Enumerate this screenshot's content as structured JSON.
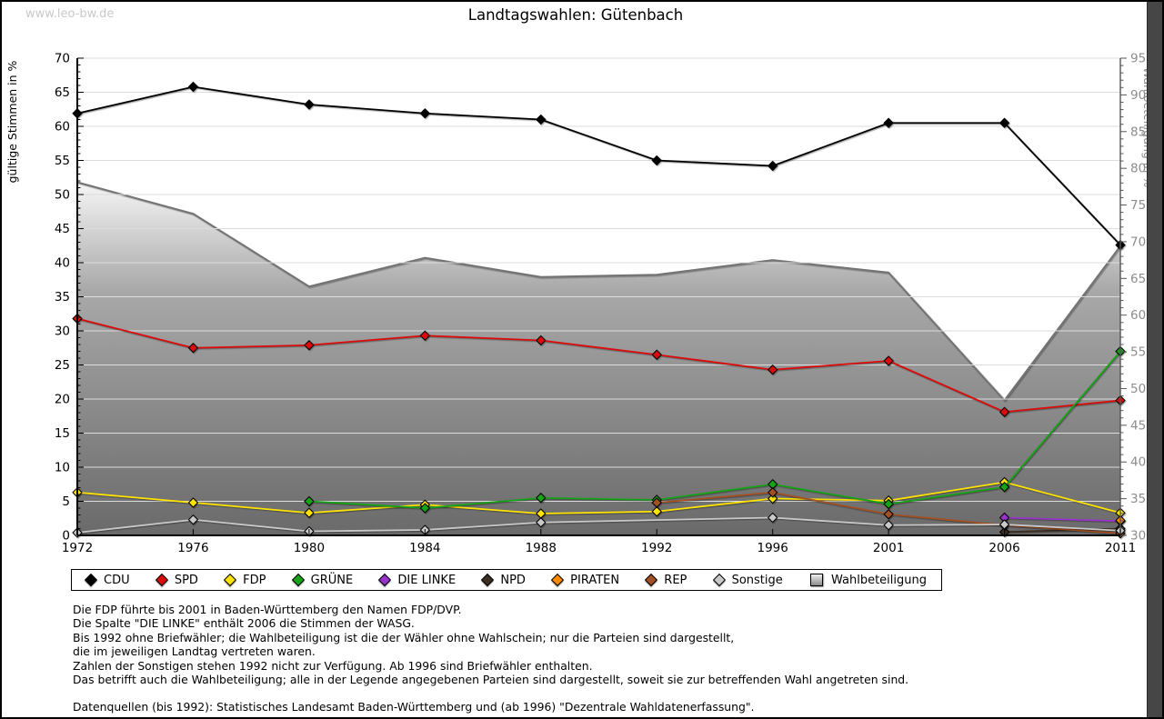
{
  "page": {
    "watermark": "www.leo-bw.de",
    "title": "Landtagswahlen: Gütenbach"
  },
  "chart_data": {
    "type": "line",
    "title": "Landtagswahlen: Gütenbach",
    "categories": [
      1972,
      1976,
      1980,
      1984,
      1988,
      1992,
      1996,
      2001,
      2006,
      2011
    ],
    "y_left": {
      "label": "gültige Stimmen in %",
      "min": 0,
      "max": 70,
      "tick_step": 5
    },
    "y_right": {
      "label": "Wahlbeteiligung in %",
      "min": 30,
      "max": 95,
      "tick_step": 5
    },
    "grid": true,
    "legend_position": "bottom",
    "series": [
      {
        "name": "CDU",
        "type": "line",
        "axis": "left",
        "color": "#000000",
        "values": [
          61.9,
          65.8,
          63.2,
          61.9,
          61.0,
          55.0,
          54.2,
          60.5,
          60.5,
          42.6
        ]
      },
      {
        "name": "SPD",
        "type": "line",
        "axis": "left",
        "color": "#dc0b0b",
        "values": [
          31.8,
          27.5,
          27.9,
          29.3,
          28.6,
          26.5,
          24.3,
          25.6,
          18.1,
          19.8
        ]
      },
      {
        "name": "FDP",
        "type": "line",
        "axis": "left",
        "color": "#ffe400",
        "values": [
          6.3,
          4.8,
          3.3,
          4.5,
          3.2,
          3.5,
          5.4,
          5.1,
          7.8,
          3.3
        ]
      },
      {
        "name": "GRÜNE",
        "type": "line",
        "axis": "left",
        "color": "#17a317",
        "values": [
          null,
          null,
          5.0,
          4.0,
          5.5,
          5.2,
          7.5,
          4.6,
          7.1,
          27.0
        ]
      },
      {
        "name": "DIE LINKE",
        "type": "line",
        "axis": "left",
        "color": "#9933cc",
        "values": [
          null,
          null,
          null,
          null,
          null,
          null,
          null,
          null,
          2.6,
          2.1
        ]
      },
      {
        "name": "NPD",
        "type": "line",
        "axis": "left",
        "color": "#3c2e22",
        "values": [
          null,
          null,
          null,
          null,
          null,
          null,
          null,
          null,
          0.5,
          1.0
        ]
      },
      {
        "name": "PIRATEN",
        "type": "line",
        "axis": "left",
        "color": "#ff8a00",
        "values": [
          null,
          null,
          null,
          null,
          null,
          null,
          null,
          null,
          null,
          2.2
        ]
      },
      {
        "name": "REP",
        "type": "line",
        "axis": "left",
        "color": "#a35022",
        "values": [
          null,
          null,
          null,
          null,
          null,
          4.8,
          6.3,
          3.1,
          1.5,
          0.3
        ]
      },
      {
        "name": "Sonstige",
        "type": "line",
        "axis": "left",
        "color": "#c9c9c9",
        "values": [
          0.4,
          2.3,
          0.6,
          0.8,
          1.9,
          null,
          2.6,
          1.5,
          1.6,
          0.7
        ]
      },
      {
        "name": "Wahlbeteiligung",
        "type": "area",
        "axis": "right",
        "color": "#737373",
        "values": [
          78.1,
          73.8,
          63.9,
          67.8,
          65.2,
          65.5,
          67.5,
          65.8,
          48.4,
          69.4
        ]
      }
    ]
  },
  "footnotes": {
    "lines": [
      "Die FDP führte bis 2001 in Baden-Württemberg den Namen FDP/DVP.",
      "Die Spalte \"DIE LINKE\" enthält 2006 die Stimmen der WASG.",
      "Bis 1992 ohne Briefwähler; die Wahlbeteiligung ist die der Wähler ohne Wahlschein; nur die Parteien sind dargestellt,",
      "die im jeweiligen Landtag vertreten waren.",
      "Zahlen der Sonstigen stehen 1992 nicht zur Verfügung. Ab 1996 sind Briefwähler enthalten.",
      "Das betrifft auch die Wahlbeteiligung; alle in der Legende angegebenen Parteien sind dargestellt, soweit sie zur betreffenden Wahl angetreten sind."
    ],
    "source": "Datenquellen (bis 1992): Statistisches Landesamt Baden-Württemberg und (ab 1996) \"Dezentrale Wahldatenerfassung\"."
  }
}
